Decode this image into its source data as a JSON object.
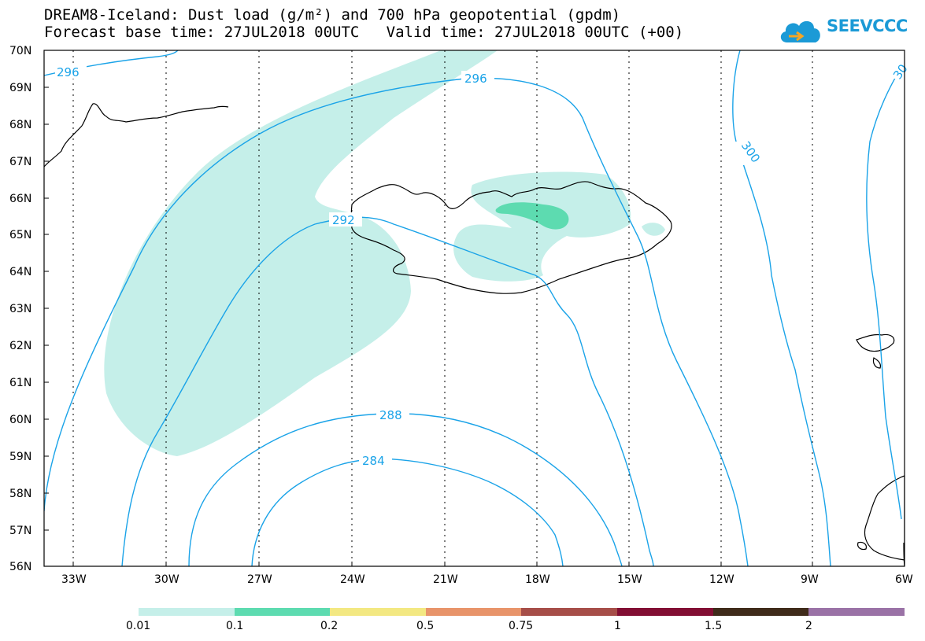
{
  "title": {
    "line1": "DREAM8-Iceland: Dust load (g/m²) and 700 hPa geopotential (gpdm)",
    "line2": "Forecast base time: 27JUL2018 00UTC   Valid time: 27JUL2018 00UTC (+00)"
  },
  "logo": {
    "text": "SEEVCCC",
    "icon": "cloud-icon",
    "color": "#1b9ad6"
  },
  "map": {
    "lat_labels": [
      "70N",
      "69N",
      "68N",
      "67N",
      "66N",
      "65N",
      "64N",
      "63N",
      "62N",
      "61N",
      "60N",
      "59N",
      "58N",
      "57N",
      "56N"
    ],
    "lon_labels": [
      "33W",
      "30W",
      "27W",
      "24W",
      "21W",
      "18W",
      "15W",
      "12W",
      "9W",
      "6W"
    ],
    "contour_labels": [
      "296",
      "296",
      "300",
      "30",
      "292",
      "288",
      "284"
    ],
    "contour_color": "#1aa3e8",
    "coast_color": "#000000"
  },
  "colorbar": {
    "labels": [
      "0.01",
      "0.1",
      "0.2",
      "0.5",
      "0.75",
      "1",
      "1.5",
      "2"
    ],
    "colors": [
      "#c5efe9",
      "#5ddbb0",
      "#f3e882",
      "#e8946a",
      "#a64e48",
      "#820e33",
      "#3f2b1a",
      "#9a72a6"
    ]
  }
}
